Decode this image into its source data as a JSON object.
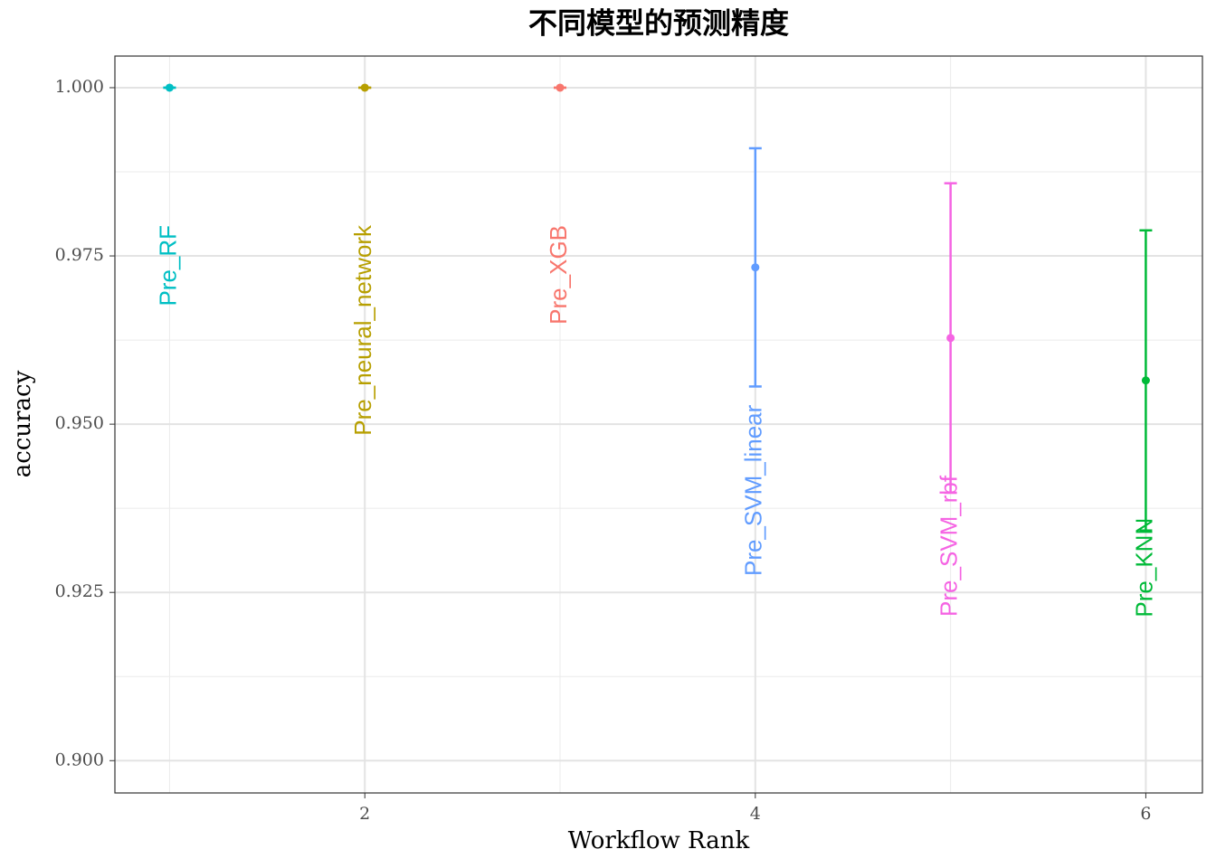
{
  "chart_data": {
    "type": "errorbar",
    "title": "不同模型的预测精度",
    "x_label": "Workflow Rank",
    "y_label": "accuracy",
    "x": [
      1,
      2,
      3,
      4,
      5,
      6
    ],
    "labels": [
      "Pre_RF",
      "Pre_neural_network",
      "Pre_XGB",
      "Pre_SVM_linear",
      "Pre_SVM_rbf",
      "Pre_KNN"
    ],
    "values": [
      1.0,
      1.0,
      1.0,
      0.9733,
      0.9628,
      0.9565
    ],
    "errors": [
      0,
      0,
      0,
      0.0177,
      0.023,
      0.0223
    ],
    "colors": [
      "#00BFC4",
      "#B79F00",
      "#F8766D",
      "#619CFF",
      "#F564E3",
      "#00BA38"
    ],
    "xlim": [
      0.72,
      6.29
    ],
    "ylim": [
      0.8952,
      1.0047
    ],
    "xticks": [
      2,
      4,
      6
    ],
    "yticks": [
      {
        "value": 0.9,
        "label": "0.900"
      },
      {
        "value": 0.925,
        "label": "0.925"
      },
      {
        "value": 0.95,
        "label": "0.950"
      },
      {
        "value": 0.975,
        "label": "0.975"
      },
      {
        "value": 1.0,
        "label": "1.000"
      }
    ],
    "grid": true
  }
}
